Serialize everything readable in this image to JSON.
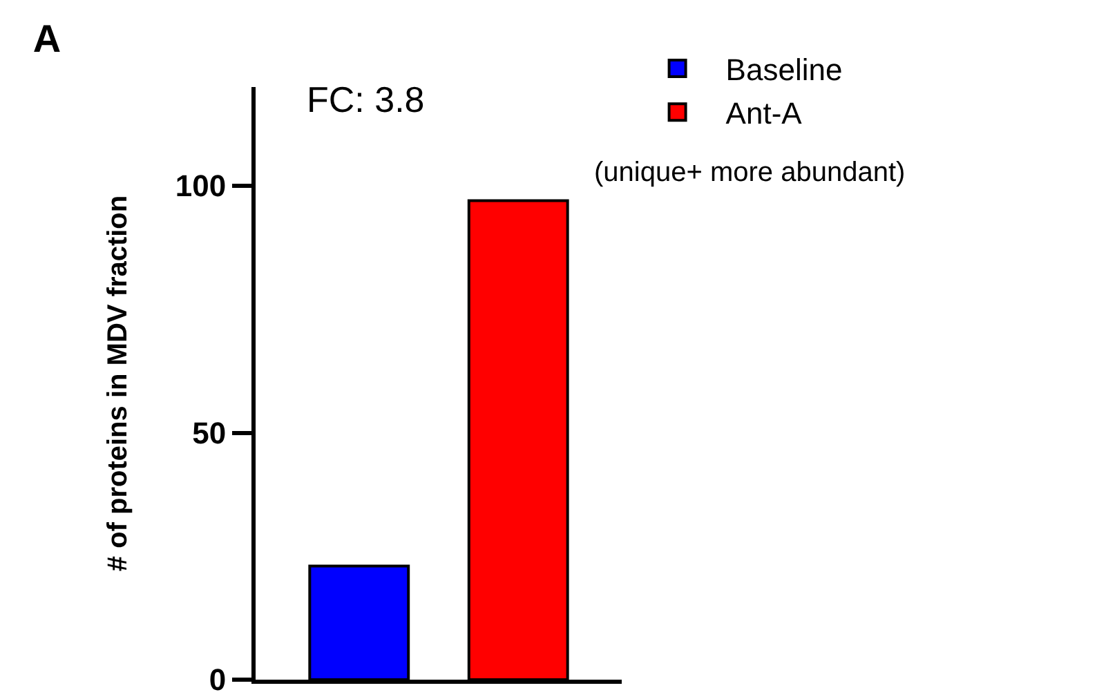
{
  "chart_data": {
    "type": "bar",
    "title": "A",
    "ylabel": "# of proteins in MDV fraction",
    "categories": [
      null,
      null
    ],
    "series": [
      {
        "name": "Baseline",
        "color": "#0000ff",
        "values": [
          23,
          null
        ]
      },
      {
        "name": "Ant-A",
        "color": "#ff0000",
        "values": [
          null,
          97
        ]
      }
    ],
    "ylim": [
      0,
      120
    ],
    "yticks": [
      0,
      50,
      100
    ],
    "grid": false,
    "legend": "top right",
    "annotations": [
      "FC: 3.8",
      "(unique+ more abundant)"
    ]
  }
}
